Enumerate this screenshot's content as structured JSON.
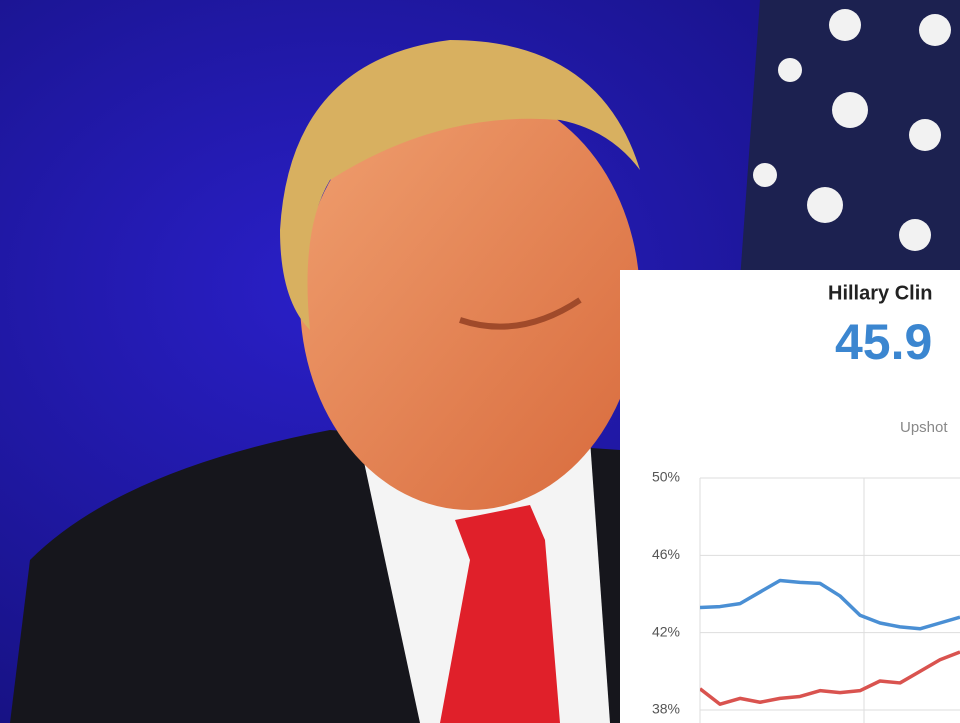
{
  "chart_data": {
    "type": "line",
    "title": "Hillary Clin",
    "headline": "45.9",
    "source": "Upshot",
    "ylim": [
      38,
      50
    ],
    "yticks": [
      {
        "value": 50,
        "label": "50%"
      },
      {
        "value": 46,
        "label": "46%"
      },
      {
        "value": 42,
        "label": "42%"
      },
      {
        "value": 38,
        "label": "38%"
      }
    ],
    "grid": true,
    "series": [
      {
        "color": "#4a8fd4",
        "values": [
          43.3,
          43.35,
          43.5,
          44.1,
          44.7,
          44.6,
          44.55,
          43.9,
          42.9,
          42.5,
          42.3,
          42.2,
          42.5,
          42.8
        ]
      },
      {
        "color": "#d9534f",
        "values": [
          39.1,
          38.3,
          38.6,
          38.4,
          38.6,
          38.7,
          39.0,
          38.9,
          39.0,
          39.5,
          39.4,
          40.0,
          40.6,
          41.0
        ]
      }
    ]
  }
}
